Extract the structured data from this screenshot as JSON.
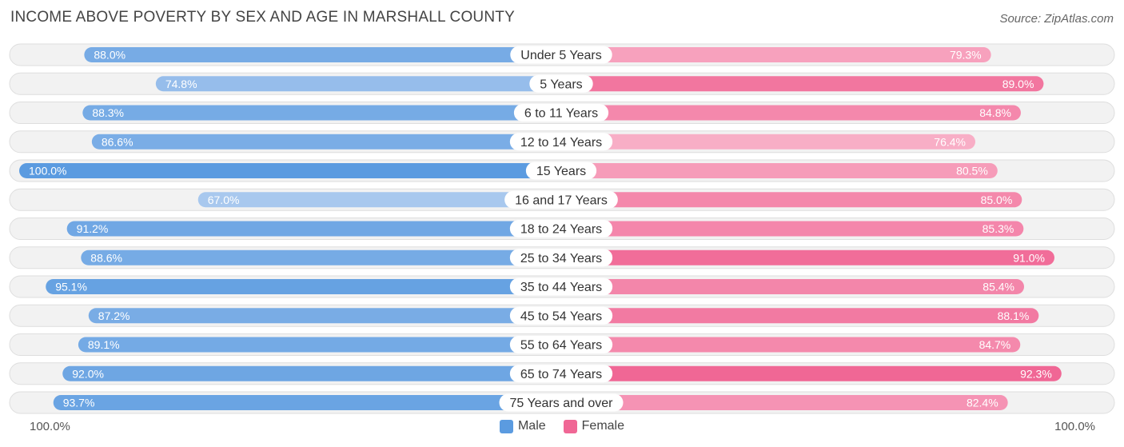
{
  "chart_data": {
    "type": "bar",
    "orientation": "horizontal-diverging",
    "title": "INCOME ABOVE POVERTY BY SEX AND AGE IN MARSHALL COUNTY",
    "source": "Source: ZipAtlas.com",
    "categories": [
      "Under 5 Years",
      "5 Years",
      "6 to 11 Years",
      "12 to 14 Years",
      "15 Years",
      "16 and 17 Years",
      "18 to 24 Years",
      "25 to 34 Years",
      "35 to 44 Years",
      "45 to 54 Years",
      "55 to 64 Years",
      "65 to 74 Years",
      "75 Years and over"
    ],
    "series": [
      {
        "name": "Male",
        "side": "left",
        "values": [
          88.0,
          74.8,
          88.3,
          86.6,
          100.0,
          67.0,
          91.2,
          88.6,
          95.1,
          87.2,
          89.1,
          92.0,
          93.7
        ],
        "labels": [
          "88.0%",
          "74.8%",
          "88.3%",
          "86.6%",
          "100.0%",
          "67.0%",
          "91.2%",
          "88.6%",
          "95.1%",
          "87.2%",
          "89.1%",
          "92.0%",
          "93.7%"
        ]
      },
      {
        "name": "Female",
        "side": "right",
        "values": [
          79.3,
          89.0,
          84.8,
          76.4,
          80.5,
          85.0,
          85.3,
          91.0,
          85.4,
          88.1,
          84.7,
          92.3,
          82.4
        ],
        "labels": [
          "79.3%",
          "89.0%",
          "84.8%",
          "76.4%",
          "80.5%",
          "85.0%",
          "85.3%",
          "91.0%",
          "85.4%",
          "88.1%",
          "84.7%",
          "92.3%",
          "82.4%"
        ]
      }
    ],
    "axis": {
      "left_label": "100.0%",
      "right_label": "100.0%",
      "xlim": [
        0,
        100
      ]
    },
    "legend": [
      "Male",
      "Female"
    ],
    "colors": {
      "male_dark": "#5b9be0",
      "male_light": "#a8c8ee",
      "female_dark": "#f06795",
      "female_light": "#f8aec6",
      "row_bg": "#f2f2f2",
      "row_border": "#dedede"
    }
  }
}
